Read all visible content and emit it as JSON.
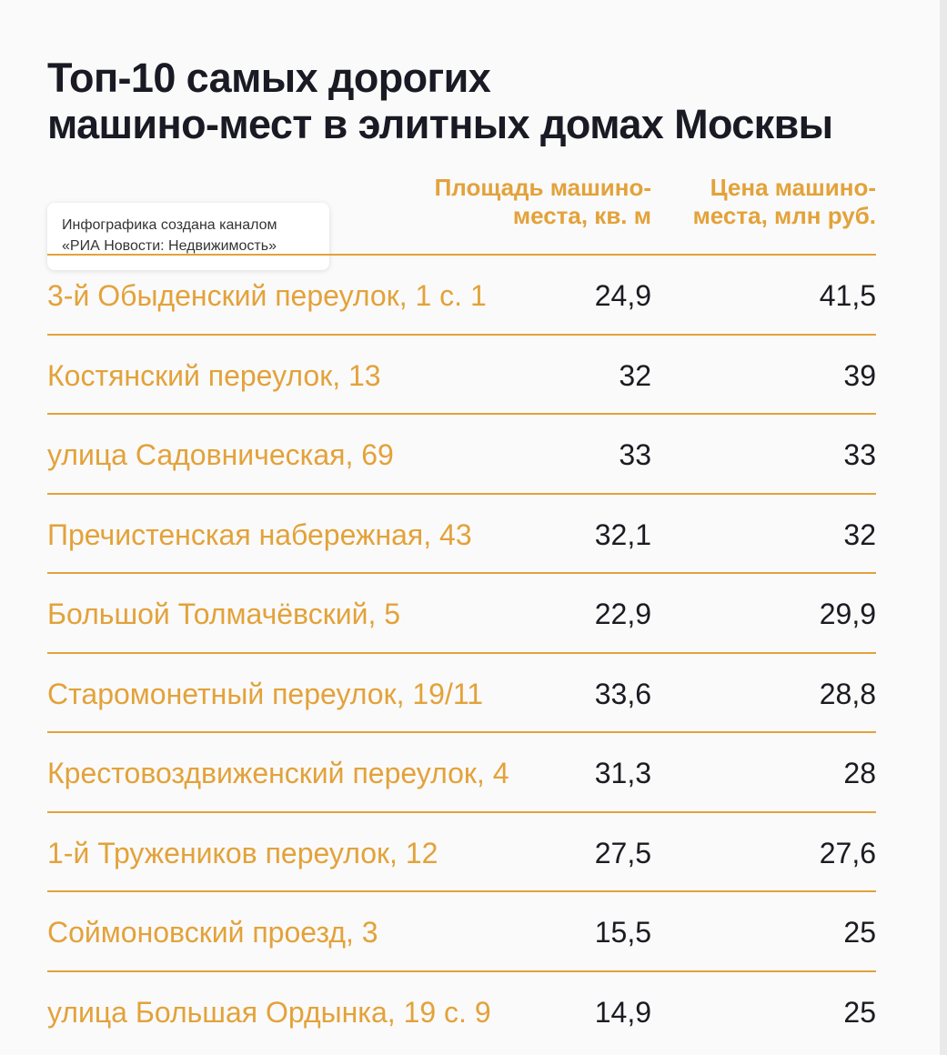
{
  "chart_data": {
    "type": "table",
    "title": "Топ-10 самых дорогих машино-мест в элитных домах Москвы",
    "title_lines": [
      "Топ-10 самых дорогих",
      "машино-мест в элитных домах Москвы"
    ],
    "credit_lines": [
      "Инфографика создана каналом",
      "«РИА Новости: Недвижимость»"
    ],
    "columns": [
      {
        "key": "address",
        "label": ""
      },
      {
        "key": "area",
        "label": "Площадь машино-места, кв. м",
        "label_lines": [
          "Площадь машино-",
          "места, кв. м"
        ]
      },
      {
        "key": "price",
        "label": "Цена машино-места, млн руб.",
        "label_lines": [
          "Цена машино-",
          "места, млн руб."
        ]
      }
    ],
    "rows": [
      {
        "address": "3-й Обыденский переулок, 1 с. 1",
        "area": "24,9",
        "price": "41,5"
      },
      {
        "address": "Костянский переулок, 13",
        "area": "32",
        "price": "39"
      },
      {
        "address": "улица Садовническая, 69",
        "area": "33",
        "price": "33"
      },
      {
        "address": "Пречистенская набережная, 43",
        "area": "32,1",
        "price": "32"
      },
      {
        "address": "Большой Толмачёвский, 5",
        "area": "22,9",
        "price": "29,9"
      },
      {
        "address": "Старомонетный переулок, 19/11",
        "area": "33,6",
        "price": "28,8"
      },
      {
        "address": "Крестовоздвиженский переулок, 4",
        "area": "31,3",
        "price": "28"
      },
      {
        "address": "1-й Тружеников переулок, 12",
        "area": "27,5",
        "price": "27,6"
      },
      {
        "address": "Соймоновский проезд, 3",
        "area": "15,5",
        "price": "25"
      },
      {
        "address": "улица Большая Ордынка, 19 с. 9",
        "area": "14,9",
        "price": "25"
      }
    ]
  },
  "colors": {
    "accent": "#e3a23a",
    "title": "#1a1a24",
    "text": "#1b1b22",
    "background": "#fafafa"
  }
}
